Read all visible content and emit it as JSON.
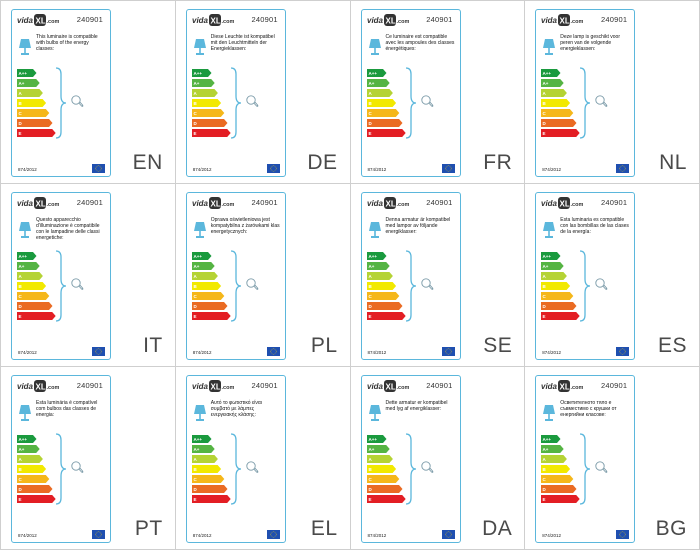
{
  "product_code": "240901",
  "regulation": "874/2012",
  "energy_classes": [
    "A++",
    "A+",
    "A",
    "B",
    "C",
    "D",
    "E"
  ],
  "energy_colors": [
    "#1a9a3e",
    "#55b443",
    "#b5d334",
    "#f2e900",
    "#f5b71a",
    "#ea6b23",
    "#e31e24"
  ],
  "accent_color": "#5bb7dc",
  "labels": [
    {
      "lang": "EN",
      "text": "This luminaire is compatible with bulbs of the energy classes:"
    },
    {
      "lang": "DE",
      "text": "Diese Leuchte ist kompatibel mit den Leuchtmitteln der Energieklassen:"
    },
    {
      "lang": "FR",
      "text": "Ce luminaire est compatible avec les ampoules des classes énergétiques:"
    },
    {
      "lang": "NL",
      "text": "Deze lamp is geschikt voor peren van de volgende energieklassen:"
    },
    {
      "lang": "IT",
      "text": "Questo apparecchio d'illuminazione è compatibile con le lampadine delle classi energetiche:"
    },
    {
      "lang": "PL",
      "text": "Oprawa oświetleniowa jest kompatybilna z żarówkami klas energetycznych:"
    },
    {
      "lang": "SE",
      "text": "Denna armatur är kompatibel med lampor av följande energiklasser:"
    },
    {
      "lang": "ES",
      "text": "Esta luminaria es compatible con las bombillas de las clases de la energía:"
    },
    {
      "lang": "PT",
      "text": "Esta luminária é compatível com bulbos das classes de energia:"
    },
    {
      "lang": "EL",
      "text": "Αυτό το φωτιστικό είναι συμβατό με λάμπες ενεργειακής κλάσης:"
    },
    {
      "lang": "DA",
      "text": "Dette armatur er kompatibel med lyg af energiklasser:"
    },
    {
      "lang": "BG",
      "text": "Осветителното тяло е съвместимо с крушки от енергийни класове:"
    }
  ]
}
